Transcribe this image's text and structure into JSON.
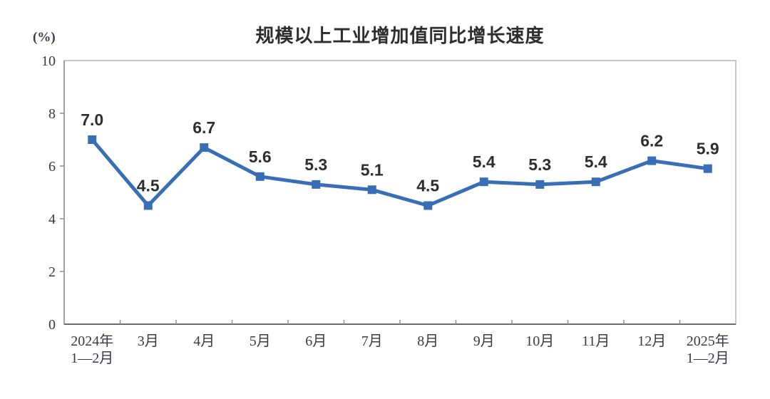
{
  "chart_data": {
    "type": "line",
    "title": "规模以上工业增加值同比增长速度",
    "ylabel": "(%)",
    "xlabel": "",
    "categories": [
      "2024年\n1—2月",
      "3月",
      "4月",
      "5月",
      "6月",
      "7月",
      "8月",
      "9月",
      "10月",
      "11月",
      "12月",
      "2025年\n1—2月"
    ],
    "values": [
      7.0,
      4.5,
      6.7,
      5.6,
      5.3,
      5.1,
      4.5,
      5.4,
      5.3,
      5.4,
      6.2,
      5.9
    ],
    "data_labels": [
      "7.0",
      "4.5",
      "6.7",
      "5.6",
      "5.3",
      "5.1",
      "4.5",
      "5.4",
      "5.3",
      "5.4",
      "6.2",
      "5.9"
    ],
    "ylim": [
      0,
      10
    ],
    "y_ticks": [
      0,
      2,
      4,
      6,
      8,
      10
    ],
    "grid": false,
    "legend": "none",
    "marker": "square",
    "colors": {
      "line": "#376EB5",
      "marker": "#376EB5",
      "frame": "#b5b5b5",
      "y_axis": "#8f8f8f",
      "x_axis": "#6b6b6b",
      "tick": "#8f8f8f",
      "axis_text": "#3a3a46",
      "data_label_text": "#2e2e2e",
      "title_text": "#2d2d2d"
    }
  }
}
